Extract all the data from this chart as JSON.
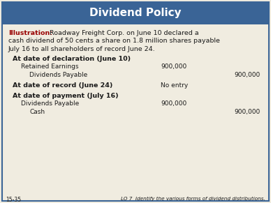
{
  "title": "Dividend Policy",
  "title_bg_color": "#3a6496",
  "title_text_color": "#ffffff",
  "bg_color": "#f0ece0",
  "illustration_label": "Illustration:",
  "illustration_label_color": "#990000",
  "illustration_line1": " Roadway Freight Corp. on June 10 declared a",
  "illustration_line2": "cash dividend of 50 cents a share on 1.8 million shares payable",
  "illustration_line3": "July 16 to all shareholders of record June 24.",
  "section1_header": "At date of declaration (June 10)",
  "section1_row1_label": "Retained Earnings",
  "section1_row1_debit": "900,000",
  "section1_row2_label": "Dividends Payable",
  "section1_row2_credit": "900,000",
  "section2_header": "At date of record (June 24)",
  "section2_noentry": "No entry",
  "section3_header": "At date of payment (July 16)",
  "section3_row1_label": "Dividends Payable",
  "section3_row1_debit": "900,000",
  "section3_row2_label": "Cash",
  "section3_row2_credit": "900,000",
  "footer_left": "15-35",
  "footer_right": "LO 7  Identify the various forms of dividend distributions.",
  "text_color": "#1a1a1a",
  "border_color": "#3a6496",
  "fig_width": 3.88,
  "fig_height": 2.91,
  "dpi": 100
}
